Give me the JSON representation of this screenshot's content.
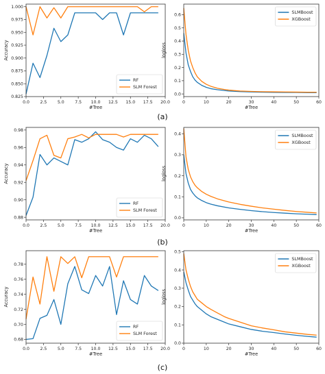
{
  "chart_data": [
    {
      "type": "line",
      "xlabel": "#Tree",
      "ylabel": "Accuracy",
      "xlim": [
        0,
        20
      ],
      "ylim": [
        0.825,
        1.005
      ],
      "xticks": [
        0.0,
        2.5,
        5.0,
        7.5,
        10.0,
        12.5,
        15.0,
        17.5,
        20.0
      ],
      "yticks": [
        0.825,
        0.85,
        0.875,
        0.9,
        0.925,
        0.95,
        0.975,
        1.0
      ],
      "grid": false,
      "legend_position": "lower-right",
      "x": [
        0,
        1,
        2,
        3,
        4,
        5,
        6,
        7,
        8,
        9,
        10,
        11,
        12,
        13,
        14,
        15,
        16,
        17,
        18,
        19
      ],
      "series": [
        {
          "name": "RF",
          "color": "#1f77b4",
          "values": [
            0.83,
            0.89,
            0.862,
            0.905,
            0.958,
            0.932,
            0.945,
            0.988,
            0.988,
            0.988,
            0.988,
            0.975,
            0.988,
            0.988,
            0.945,
            0.988,
            0.988,
            0.988,
            0.988,
            0.988
          ]
        },
        {
          "name": "SLM Forest",
          "color": "#ff7f0e",
          "values": [
            1.0,
            0.945,
            1.0,
            0.978,
            0.998,
            0.978,
            1.0,
            1.0,
            1.0,
            1.0,
            1.0,
            1.0,
            1.0,
            1.0,
            1.0,
            1.0,
            1.0,
            0.99,
            1.0,
            1.0
          ]
        }
      ]
    },
    {
      "type": "line",
      "xlabel": "#Tree",
      "ylabel": "logloss",
      "xlim": [
        0,
        60
      ],
      "ylim": [
        -0.02,
        0.68
      ],
      "xticks": [
        0,
        10,
        20,
        30,
        40,
        50,
        60
      ],
      "yticks": [
        0.0,
        0.1,
        0.2,
        0.3,
        0.4,
        0.5,
        0.6
      ],
      "grid": false,
      "legend_position": "upper-right",
      "x": [
        0,
        1,
        2,
        3,
        4,
        5,
        6,
        8,
        10,
        12,
        15,
        18,
        20,
        25,
        30,
        35,
        40,
        45,
        50,
        55,
        59
      ],
      "series": [
        {
          "name": "SLMBoost",
          "color": "#1f77b4",
          "values": [
            0.46,
            0.31,
            0.22,
            0.17,
            0.13,
            0.105,
            0.088,
            0.065,
            0.05,
            0.04,
            0.032,
            0.026,
            0.022,
            0.018,
            0.015,
            0.013,
            0.012,
            0.011,
            0.011,
            0.01,
            0.01
          ]
        },
        {
          "name": "XGBoost",
          "color": "#ff7f0e",
          "values": [
            0.65,
            0.45,
            0.33,
            0.25,
            0.2,
            0.16,
            0.13,
            0.095,
            0.073,
            0.058,
            0.043,
            0.034,
            0.029,
            0.022,
            0.019,
            0.017,
            0.016,
            0.015,
            0.014,
            0.013,
            0.013
          ]
        }
      ]
    },
    {
      "type": "line",
      "xlabel": "#Tree",
      "ylabel": "Accuracy",
      "xlim": [
        0,
        20
      ],
      "ylim": [
        0.877,
        0.983
      ],
      "xticks": [
        0.0,
        2.5,
        5.0,
        7.5,
        10.0,
        12.5,
        15.0,
        17.5,
        20.0
      ],
      "yticks": [
        0.88,
        0.9,
        0.92,
        0.94,
        0.96,
        0.98
      ],
      "grid": false,
      "legend_position": "lower-right",
      "x": [
        0,
        1,
        2,
        3,
        4,
        5,
        6,
        7,
        8,
        9,
        10,
        11,
        12,
        13,
        14,
        15,
        16,
        17,
        18,
        19
      ],
      "series": [
        {
          "name": "RF",
          "color": "#1f77b4",
          "values": [
            0.882,
            0.903,
            0.952,
            0.94,
            0.948,
            0.944,
            0.94,
            0.969,
            0.966,
            0.97,
            0.978,
            0.969,
            0.966,
            0.96,
            0.957,
            0.97,
            0.966,
            0.974,
            0.97,
            0.961
          ]
        },
        {
          "name": "SLM Forest",
          "color": "#ff7f0e",
          "values": [
            0.922,
            0.945,
            0.97,
            0.974,
            0.951,
            0.948,
            0.97,
            0.972,
            0.975,
            0.971,
            0.975,
            0.975,
            0.975,
            0.975,
            0.972,
            0.975,
            0.975,
            0.975,
            0.975,
            0.975
          ]
        }
      ]
    },
    {
      "type": "line",
      "xlabel": "#Tree",
      "ylabel": "logloss",
      "xlim": [
        0,
        60
      ],
      "ylim": [
        -0.01,
        0.43
      ],
      "xticks": [
        0,
        10,
        20,
        30,
        40,
        50,
        60
      ],
      "yticks": [
        0.0,
        0.1,
        0.2,
        0.3,
        0.4
      ],
      "grid": false,
      "legend_position": "upper-right",
      "x": [
        0,
        1,
        2,
        3,
        4,
        5,
        6,
        8,
        10,
        12,
        15,
        20,
        25,
        30,
        35,
        40,
        45,
        50,
        55,
        59
      ],
      "series": [
        {
          "name": "SLMBoost",
          "color": "#1f77b4",
          "values": [
            0.3,
            0.21,
            0.165,
            0.135,
            0.118,
            0.105,
            0.095,
            0.082,
            0.072,
            0.065,
            0.057,
            0.047,
            0.04,
            0.034,
            0.029,
            0.025,
            0.022,
            0.019,
            0.017,
            0.015
          ]
        },
        {
          "name": "XGBoost",
          "color": "#ff7f0e",
          "values": [
            0.425,
            0.29,
            0.23,
            0.195,
            0.172,
            0.155,
            0.143,
            0.125,
            0.112,
            0.102,
            0.09,
            0.075,
            0.064,
            0.055,
            0.047,
            0.041,
            0.035,
            0.03,
            0.026,
            0.023
          ]
        }
      ]
    },
    {
      "type": "line",
      "xlabel": "#Tree",
      "ylabel": "Accuracy",
      "xlim": [
        0,
        20
      ],
      "ylim": [
        0.675,
        0.798
      ],
      "xticks": [
        0.0,
        2.5,
        5.0,
        7.5,
        10.0,
        12.5,
        15.0,
        17.5,
        20.0
      ],
      "yticks": [
        0.68,
        0.7,
        0.72,
        0.74,
        0.76,
        0.78
      ],
      "grid": false,
      "legend_position": "lower-right",
      "x": [
        0,
        1,
        2,
        3,
        4,
        5,
        6,
        7,
        8,
        9,
        10,
        11,
        12,
        13,
        14,
        15,
        16,
        17,
        18,
        19
      ],
      "series": [
        {
          "name": "RF",
          "color": "#1f77b4",
          "values": [
            0.68,
            0.681,
            0.708,
            0.712,
            0.733,
            0.7,
            0.754,
            0.777,
            0.746,
            0.741,
            0.765,
            0.751,
            0.777,
            0.713,
            0.758,
            0.733,
            0.727,
            0.765,
            0.751,
            0.745
          ]
        },
        {
          "name": "SLM Forest",
          "color": "#ff7f0e",
          "values": [
            0.707,
            0.763,
            0.727,
            0.79,
            0.744,
            0.79,
            0.781,
            0.79,
            0.762,
            0.79,
            0.79,
            0.79,
            0.79,
            0.763,
            0.79,
            0.79,
            0.79,
            0.79,
            0.79,
            0.79
          ]
        }
      ]
    },
    {
      "type": "line",
      "xlabel": "#Tree",
      "ylabel": "logloss",
      "xlim": [
        0,
        60
      ],
      "ylim": [
        0.0,
        0.505
      ],
      "xticks": [
        0,
        10,
        20,
        30,
        40,
        50,
        60
      ],
      "yticks": [
        0.0,
        0.1,
        0.2,
        0.3,
        0.4,
        0.5
      ],
      "grid": false,
      "legend_position": "upper-right",
      "x": [
        0,
        1,
        2,
        3,
        4,
        5,
        6,
        8,
        10,
        12,
        15,
        18,
        20,
        25,
        30,
        35,
        40,
        45,
        50,
        55,
        59
      ],
      "series": [
        {
          "name": "SLMBoost",
          "color": "#1f77b4",
          "values": [
            0.39,
            0.33,
            0.29,
            0.255,
            0.235,
            0.215,
            0.2,
            0.18,
            0.16,
            0.145,
            0.13,
            0.115,
            0.105,
            0.09,
            0.075,
            0.065,
            0.058,
            0.05,
            0.043,
            0.037,
            0.033
          ]
        },
        {
          "name": "XGBoost",
          "color": "#ff7f0e",
          "values": [
            0.49,
            0.4,
            0.35,
            0.31,
            0.28,
            0.26,
            0.24,
            0.22,
            0.2,
            0.185,
            0.165,
            0.145,
            0.135,
            0.115,
            0.095,
            0.083,
            0.073,
            0.062,
            0.055,
            0.048,
            0.044
          ]
        }
      ]
    }
  ],
  "captions": [
    "(a)",
    "(b)",
    "(c)"
  ]
}
